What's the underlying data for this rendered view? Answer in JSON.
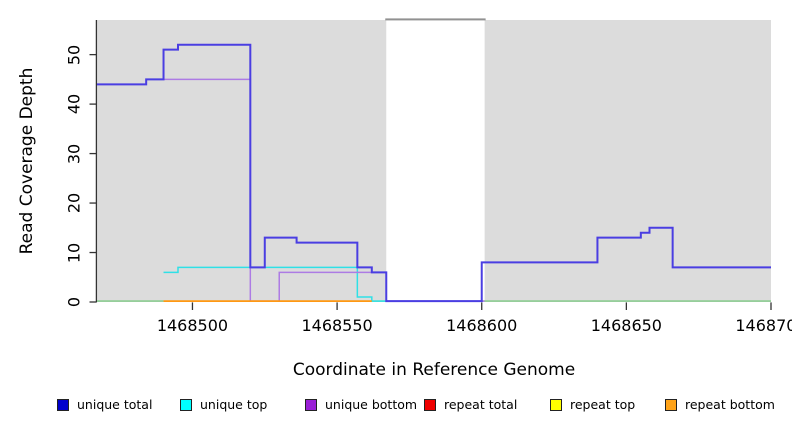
{
  "figure": {
    "xlabel": "Coordinate in Reference Genome",
    "ylabel": "Read Coverage Depth"
  },
  "legend": {
    "items": [
      {
        "label": "unique total",
        "color": "#0000CC"
      },
      {
        "label": "unique top",
        "color": "#00FFFF"
      },
      {
        "label": "unique bottom",
        "color": "#9A1FD6"
      },
      {
        "label": "repeat total",
        "color": "#EE0000"
      },
      {
        "label": "repeat top",
        "color": "#FFFF00"
      },
      {
        "label": "repeat bottom",
        "color": "#FFA319"
      }
    ]
  },
  "chart_data": {
    "type": "line",
    "subtype": "step-coverage",
    "title": "",
    "xlabel": "Coordinate in Reference Genome",
    "ylabel": "Read Coverage Depth",
    "xlim": [
      1468467,
      1468700
    ],
    "ylim": [
      0,
      57
    ],
    "x_ticks": [
      1468500,
      1468550,
      1468600,
      1468650,
      1468700
    ],
    "y_ticks": [
      0,
      10,
      20,
      30,
      40,
      50
    ],
    "grid": false,
    "legend_position": "bottom",
    "panel_background": "#DCDCDC",
    "masked_gray_regions": [
      [
        1468467,
        1468567
      ],
      [
        1468601,
        1468700
      ]
    ],
    "uncovered_white_region": [
      1468567,
      1468601
    ],
    "gap_top_line_color": "#919191",
    "axis_color": "#333333",
    "series": [
      {
        "name": "unique total",
        "color": "#4A3EE2",
        "line_width": 2,
        "breaks": [
          1468467,
          1468484,
          1468490,
          1468495,
          1468520,
          1468525,
          1468536,
          1468557,
          1468562,
          1468567,
          1468600,
          1468640,
          1468655,
          1468658,
          1468666,
          1468700
        ],
        "levels": [
          44,
          45,
          51,
          52,
          7,
          13,
          12,
          7,
          6,
          0,
          8,
          13,
          14,
          15,
          7
        ]
      },
      {
        "name": "unique top",
        "color": "#2FE0E6",
        "line_width": 1.5,
        "breaks": [
          1468490,
          1468495,
          1468557,
          1468562,
          1468567
        ],
        "levels": [
          6,
          7,
          1,
          0
        ]
      },
      {
        "name": "unique bottom",
        "color": "#AD7BE4",
        "line_width": 1.5,
        "breaks": [
          1468490,
          1468520,
          1468530,
          1468567,
          1468601
        ],
        "levels": [
          45,
          0,
          6,
          0
        ]
      },
      {
        "name": "repeat total",
        "color": "#EE0000",
        "line_width": 1.5,
        "breaks": [],
        "levels": []
      },
      {
        "name": "repeat top",
        "color": "#FFFF00",
        "line_width": 1.5,
        "breaks": [],
        "levels": []
      },
      {
        "name": "repeat bottom",
        "color": "#FF9812",
        "line_width": 1.8,
        "breaks": [
          1468490,
          1468562
        ],
        "levels": [
          0
        ]
      }
    ],
    "zero_line_overlap_segments": [
      {
        "color": "#8CCD92",
        "from": 1468467,
        "to": 1468490
      },
      {
        "color": "#9FD8A4",
        "from": 1468562,
        "to": 1468567
      },
      {
        "color": "#8CCD92",
        "from": 1468600,
        "to": 1468700
      }
    ]
  }
}
